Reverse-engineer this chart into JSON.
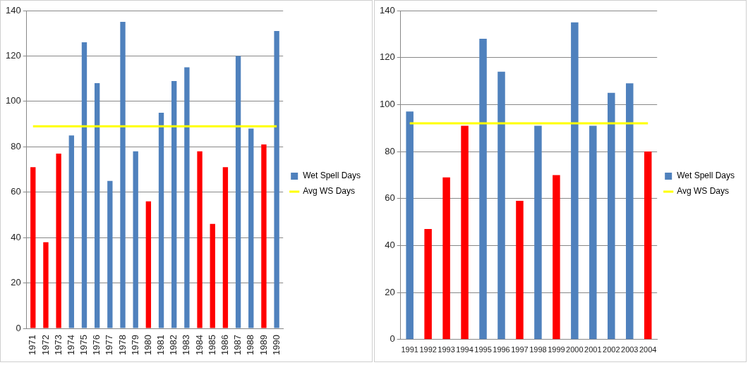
{
  "chart_data": [
    {
      "type": "bar",
      "categories": [
        "1971",
        "1972",
        "1973",
        "1974",
        "1975",
        "1976",
        "1977",
        "1978",
        "1979",
        "1980",
        "1981",
        "1982",
        "1983",
        "1984",
        "1985",
        "1986",
        "1987",
        "1988",
        "1989",
        "1990"
      ],
      "series": [
        {
          "name": "Wet Spell Days",
          "color": "#4f81bd",
          "colors": [
            "#ff0000",
            "#ff0000",
            "#ff0000",
            "#4f81bd",
            "#4f81bd",
            "#4f81bd",
            "#4f81bd",
            "#4f81bd",
            "#4f81bd",
            "#ff0000",
            "#4f81bd",
            "#4f81bd",
            "#4f81bd",
            "#ff0000",
            "#ff0000",
            "#ff0000",
            "#4f81bd",
            "#4f81bd",
            "#ff0000",
            "#4f81bd"
          ],
          "values": [
            71,
            38,
            77,
            85,
            126,
            108,
            65,
            135,
            78,
            56,
            95,
            109,
            115,
            78,
            46,
            71,
            120,
            88,
            81,
            131
          ]
        },
        {
          "name": "Avg WS Days",
          "type": "line",
          "color": "#ffff00",
          "values": [
            89,
            89,
            89,
            89,
            89,
            89,
            89,
            89,
            89,
            89,
            89,
            89,
            89,
            89,
            89,
            89,
            89,
            89,
            89,
            89
          ]
        }
      ],
      "ylim": [
        0,
        140
      ],
      "yticks": [
        0,
        20,
        40,
        60,
        80,
        100,
        120,
        140
      ],
      "grid": "y",
      "legend": "right",
      "marker": "none"
    },
    {
      "type": "bar",
      "categories": [
        "1991",
        "1992",
        "1993",
        "1994",
        "1995",
        "1996",
        "1997",
        "1998",
        "1999",
        "2000",
        "2001",
        "2002",
        "2003",
        "2004"
      ],
      "series": [
        {
          "name": "Wet Spell Days",
          "color": "#4f81bd",
          "colors": [
            "#4f81bd",
            "#ff0000",
            "#ff0000",
            "#ff0000",
            "#4f81bd",
            "#4f81bd",
            "#ff0000",
            "#4f81bd",
            "#ff0000",
            "#4f81bd",
            "#4f81bd",
            "#4f81bd",
            "#4f81bd",
            "#ff0000"
          ],
          "values": [
            97,
            47,
            69,
            91,
            128,
            114,
            59,
            91,
            70,
            135,
            91,
            105,
            109,
            80
          ]
        },
        {
          "name": "Avg WS Days",
          "type": "line",
          "color": "#ffff00",
          "values": [
            92,
            92,
            92,
            92,
            92,
            92,
            92,
            92,
            92,
            92,
            92,
            92,
            92,
            92
          ]
        }
      ],
      "ylim": [
        0,
        140
      ],
      "yticks": [
        0,
        20,
        40,
        60,
        80,
        100,
        120,
        140
      ],
      "grid": "y",
      "legend": "right",
      "marker": "none"
    }
  ]
}
